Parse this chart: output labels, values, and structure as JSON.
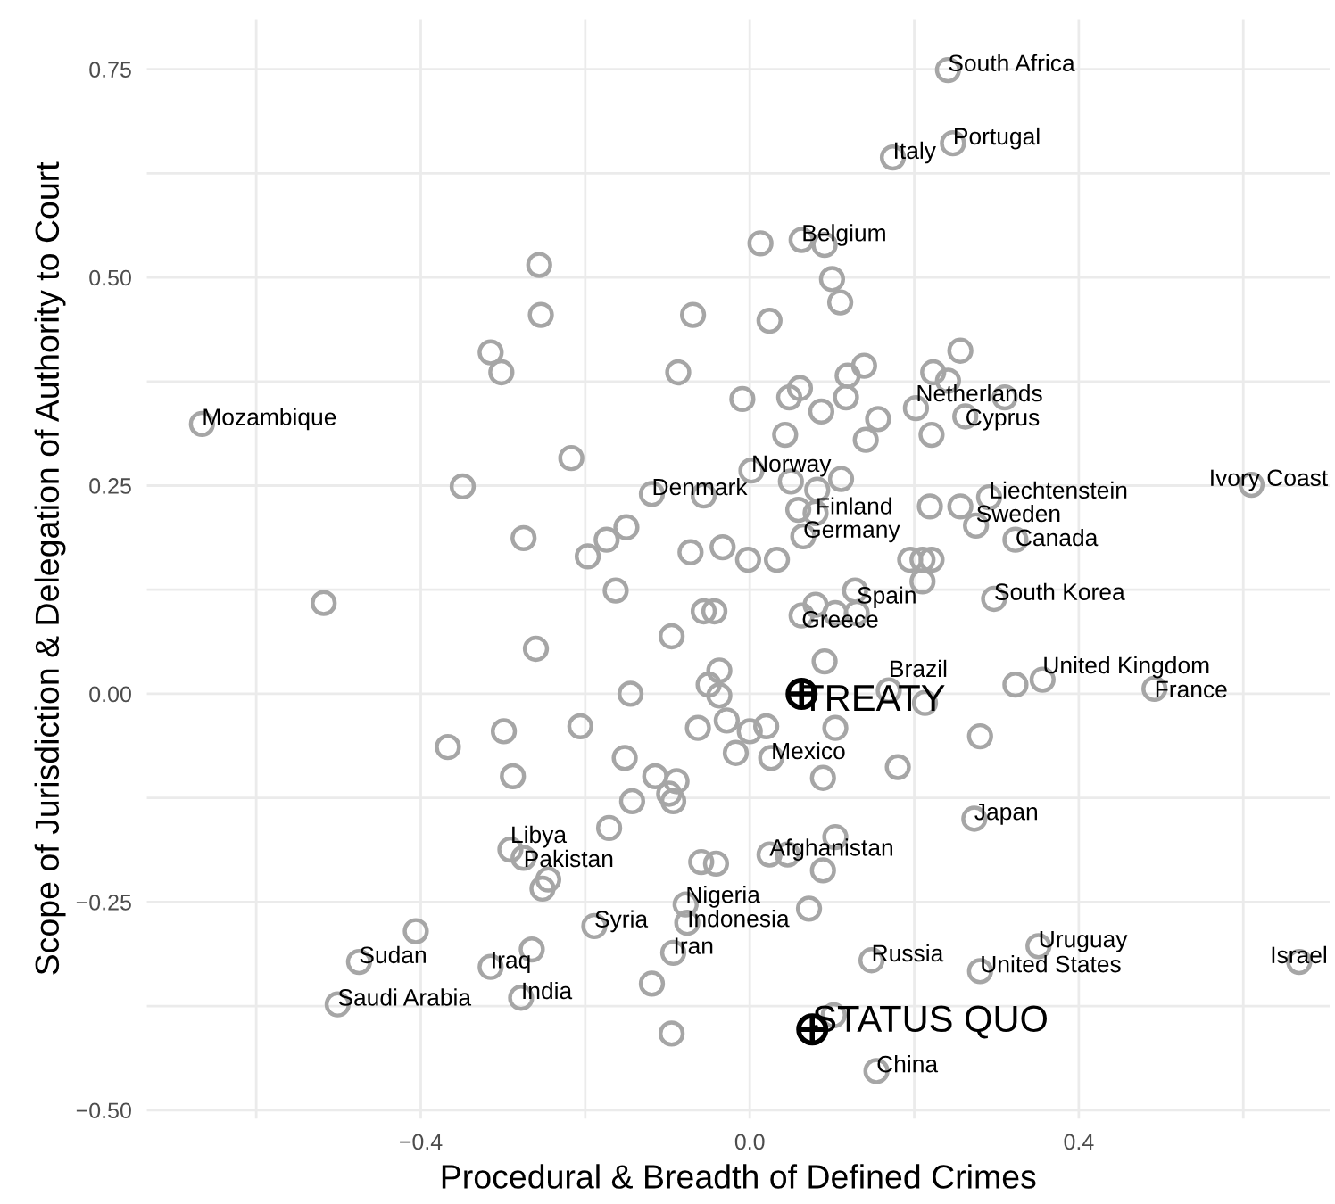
{
  "chart_data": {
    "type": "scatter",
    "xlabel": "Procedural & Breadth of Defined Crimes",
    "ylabel": "Scope of Jurisdiction & Delegation of Authority to Court",
    "xlim": [
      -0.733,
      0.705
    ],
    "ylim": [
      -0.51,
      0.81
    ],
    "xticks": [
      {
        "value": -0.6,
        "label": null
      },
      {
        "value": -0.4,
        "label": "−0.4"
      },
      {
        "value": -0.2,
        "label": null
      },
      {
        "value": 0.0,
        "label": "0.0"
      },
      {
        "value": 0.2,
        "label": null
      },
      {
        "value": 0.4,
        "label": "0.4"
      },
      {
        "value": 0.6,
        "label": null
      }
    ],
    "yticks": [
      {
        "value": -0.5,
        "label": "−0.50"
      },
      {
        "value": -0.375,
        "label": null
      },
      {
        "value": -0.25,
        "label": "−0.25"
      },
      {
        "value": -0.125,
        "label": null
      },
      {
        "value": 0.0,
        "label": "0.00"
      },
      {
        "value": 0.125,
        "label": null
      },
      {
        "value": 0.25,
        "label": "0.25"
      },
      {
        "value": 0.375,
        "label": null
      },
      {
        "value": 0.5,
        "label": "0.50"
      },
      {
        "value": 0.625,
        "label": null
      },
      {
        "value": 0.75,
        "label": "0.75"
      }
    ],
    "grid": true,
    "legend": false,
    "series": [
      {
        "color": "#a6a6a6",
        "marker": "circle",
        "x": [
          0.241,
          0.247,
          0.174,
          0.063,
          -0.666,
          0.202,
          0.262,
          0.61,
          0.002,
          -0.119,
          0.291,
          0.275,
          0.323,
          0.08,
          0.065,
          0.297,
          0.063,
          0.13,
          0.169,
          0.356,
          0.492,
          0.026,
          0.273,
          0.024,
          -0.078,
          -0.076,
          0.148,
          0.351,
          0.28,
          0.668,
          0.154,
          -0.291,
          -0.275,
          -0.189,
          -0.093,
          -0.475,
          -0.315,
          -0.278,
          -0.501,
          -0.256,
          -0.254,
          -0.315,
          -0.302,
          -0.069,
          -0.087,
          -0.009,
          -0.217,
          -0.349,
          -0.275,
          -0.197,
          -0.174,
          -0.15,
          -0.056,
          -0.072,
          -0.033,
          -0.002,
          -0.163,
          0.013,
          0.091,
          0.1,
          0.11,
          0.024,
          0.256,
          0.223,
          0.241,
          0.139,
          0.119,
          0.061,
          0.048,
          0.117,
          0.087,
          0.156,
          0.141,
          0.043,
          0.221,
          0.31,
          0.05,
          0.111,
          0.082,
          0.059,
          0.219,
          0.256,
          0.033,
          0.195,
          0.21,
          0.221,
          0.21,
          -0.518,
          -0.056,
          -0.095,
          -0.26,
          -0.037,
          -0.05,
          -0.037,
          -0.145,
          -0.299,
          -0.367,
          -0.206,
          -0.063,
          -0.028,
          -0.017,
          -0.288,
          -0.152,
          -0.115,
          -0.089,
          -0.098,
          -0.093,
          -0.143,
          -0.171,
          -0.245,
          -0.252,
          -0.059,
          -0.041,
          -0.406,
          -0.265,
          -0.119,
          -0.095,
          -0.043,
          0.091,
          0.02,
          0.0,
          0.104,
          0.089,
          0.18,
          0.28,
          0.213,
          0.323,
          0.104,
          0.046,
          0.089,
          0.072,
          0.102,
          0.08,
          0.104,
          0.128
        ],
        "values": [
          0.749,
          0.661,
          0.644,
          0.545,
          0.324,
          0.343,
          0.333,
          0.251,
          0.268,
          0.24,
          0.236,
          0.202,
          0.185,
          0.217,
          0.189,
          0.114,
          0.094,
          0.097,
          0.004,
          0.017,
          0.006,
          -0.077,
          -0.15,
          -0.193,
          -0.253,
          -0.275,
          -0.32,
          -0.303,
          -0.333,
          -0.322,
          -0.453,
          -0.187,
          -0.197,
          -0.279,
          -0.311,
          -0.322,
          -0.328,
          -0.365,
          -0.373,
          0.515,
          0.455,
          0.41,
          0.386,
          0.455,
          0.386,
          0.354,
          0.283,
          0.249,
          0.187,
          0.165,
          0.185,
          0.2,
          0.238,
          0.17,
          0.176,
          0.161,
          0.124,
          0.541,
          0.539,
          0.498,
          0.47,
          0.448,
          0.412,
          0.386,
          0.376,
          0.394,
          0.382,
          0.367,
          0.356,
          0.356,
          0.339,
          0.33,
          0.305,
          0.311,
          0.311,
          0.356,
          0.255,
          0.258,
          0.245,
          0.221,
          0.225,
          0.225,
          0.161,
          0.161,
          0.161,
          0.161,
          0.135,
          0.109,
          0.099,
          0.069,
          0.054,
          0.028,
          0.011,
          -0.002,
          0.0,
          -0.045,
          -0.064,
          -0.039,
          -0.041,
          -0.032,
          -0.071,
          -0.099,
          -0.077,
          -0.099,
          -0.105,
          -0.12,
          -0.129,
          -0.129,
          -0.161,
          -0.223,
          -0.234,
          -0.202,
          -0.204,
          -0.285,
          -0.307,
          -0.348,
          -0.408,
          0.099,
          0.039,
          -0.039,
          -0.045,
          -0.041,
          -0.101,
          -0.088,
          -0.051,
          -0.011,
          0.011,
          -0.172,
          -0.193,
          -0.212,
          -0.258,
          -0.386,
          0.107,
          0.097,
          0.124
        ]
      },
      {
        "name": "TREATY",
        "color": "#000000",
        "x": [
          0.063
        ],
        "values": [
          0.0
        ]
      },
      {
        "name": "STATUS QUO",
        "color": "#000000",
        "x": [
          0.076
        ],
        "values": [
          -0.403
        ]
      }
    ],
    "annotations": [
      {
        "text": "South Africa",
        "x": 0.241,
        "y": 0.749
      },
      {
        "text": "Portugal",
        "x": 0.247,
        "y": 0.661
      },
      {
        "text": "Italy",
        "x": 0.174,
        "y": 0.644
      },
      {
        "text": "Belgium",
        "x": 0.063,
        "y": 0.545
      },
      {
        "text": "Mozambique",
        "x": -0.666,
        "y": 0.324
      },
      {
        "text": "Netherlands",
        "x": 0.202,
        "y": 0.343
      },
      {
        "text": "Cyprus",
        "x": 0.262,
        "y": 0.333
      },
      {
        "text": "Ivory Coast",
        "x": 0.61,
        "y": 0.251
      },
      {
        "text": "Norway",
        "x": 0.002,
        "y": 0.268
      },
      {
        "text": "Denmark",
        "x": -0.119,
        "y": 0.24
      },
      {
        "text": "Liechtenstein",
        "x": 0.291,
        "y": 0.236
      },
      {
        "text": "Sweden",
        "x": 0.275,
        "y": 0.202
      },
      {
        "text": "Canada",
        "x": 0.323,
        "y": 0.185
      },
      {
        "text": "Finland",
        "x": 0.08,
        "y": 0.217
      },
      {
        "text": "Germany",
        "x": 0.065,
        "y": 0.189
      },
      {
        "text": "South Korea",
        "x": 0.297,
        "y": 0.114
      },
      {
        "text": "Greece",
        "x": 0.063,
        "y": 0.094
      },
      {
        "text": "Spain",
        "x": 0.13,
        "y": 0.097
      },
      {
        "text": "Brazil",
        "x": 0.169,
        "y": 0.004
      },
      {
        "text": "United Kingdom",
        "x": 0.356,
        "y": 0.017
      },
      {
        "text": "France",
        "x": 0.492,
        "y": 0.006
      },
      {
        "text": "Mexico",
        "x": 0.026,
        "y": -0.077
      },
      {
        "text": "Japan",
        "x": 0.273,
        "y": -0.15
      },
      {
        "text": "Afghanistan",
        "x": 0.024,
        "y": -0.193
      },
      {
        "text": "Nigeria",
        "x": -0.078,
        "y": -0.253
      },
      {
        "text": "Indonesia",
        "x": -0.076,
        "y": -0.275
      },
      {
        "text": "Russia",
        "x": 0.148,
        "y": -0.32
      },
      {
        "text": "Uruguay",
        "x": 0.351,
        "y": -0.303
      },
      {
        "text": "United States",
        "x": 0.28,
        "y": -0.333
      },
      {
        "text": "Israel",
        "x": 0.668,
        "y": -0.322
      },
      {
        "text": "China",
        "x": 0.154,
        "y": -0.453
      },
      {
        "text": "Libya",
        "x": -0.291,
        "y": -0.187
      },
      {
        "text": "Pakistan",
        "x": -0.275,
        "y": -0.197
      },
      {
        "text": "Syria",
        "x": -0.189,
        "y": -0.279
      },
      {
        "text": "Iran",
        "x": -0.093,
        "y": -0.311
      },
      {
        "text": "Sudan",
        "x": -0.475,
        "y": -0.322
      },
      {
        "text": "Iraq",
        "x": -0.315,
        "y": -0.328
      },
      {
        "text": "India",
        "x": -0.278,
        "y": -0.365
      },
      {
        "text": "Saudi Arabia",
        "x": -0.501,
        "y": -0.373
      }
    ]
  }
}
